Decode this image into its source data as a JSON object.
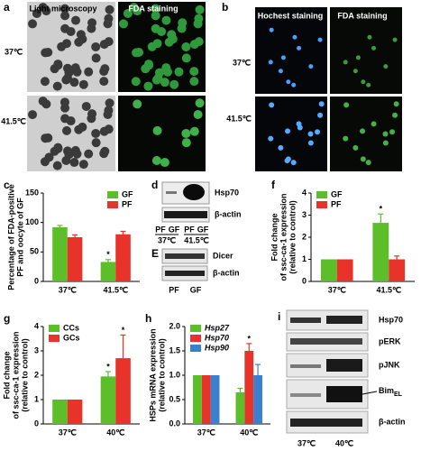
{
  "panels": {
    "a": {
      "label": "a",
      "headers": [
        "Light microscopy",
        "FDA staining"
      ],
      "rows": [
        "37℃",
        "41.5℃"
      ]
    },
    "b": {
      "label": "b",
      "headers": [
        "Hochest staining",
        "FDA staining"
      ],
      "rows": [
        "37℃",
        "41.5℃"
      ]
    },
    "d": {
      "label": "d",
      "bands": [
        "Hsp70",
        "β-actin"
      ],
      "lanes": [
        "PF",
        "GF",
        "PF",
        "GF"
      ],
      "temps": [
        "37℃",
        "41.5℃"
      ]
    },
    "e": {
      "label": "E",
      "bands": [
        "Dicer",
        "β-actin"
      ],
      "lanes": [
        "PF",
        "GF"
      ]
    },
    "i": {
      "label": "i",
      "bands": [
        "Hsp70",
        "pERK",
        "pJNK",
        "Bim",
        "β-actin"
      ],
      "subscript": "EL",
      "lanes": [
        "37℃",
        "40℃"
      ]
    }
  },
  "chart_data": [
    {
      "type": "bar",
      "panel": "c",
      "ylabel": [
        "Percentage of FDA-positive",
        "PF and oocyte of GF"
      ],
      "categories": [
        "37℃",
        "41.5℃"
      ],
      "ylim": [
        0,
        150
      ],
      "yticks": [
        0,
        50,
        100,
        150
      ],
      "legend": "top-right",
      "series": [
        {
          "name": "GF",
          "color": "#5cbf2a",
          "values": [
            92,
            33
          ],
          "errors": [
            3,
            4
          ],
          "markers": [
            null,
            "*"
          ]
        },
        {
          "name": "PF",
          "color": "#e8332a",
          "values": [
            75,
            80
          ],
          "errors": [
            4,
            5
          ],
          "markers": [
            null,
            null
          ]
        }
      ]
    },
    {
      "type": "bar",
      "panel": "f",
      "ylabel": [
        "Fold change",
        "of ssc-ca-1 expression",
        "(relative to control)"
      ],
      "categories": [
        "37℃",
        "41.5℃"
      ],
      "ylim": [
        0,
        4
      ],
      "yticks": [
        0,
        1,
        2,
        3,
        4
      ],
      "legend": "top-left",
      "series": [
        {
          "name": "GF",
          "color": "#5cbf2a",
          "values": [
            1,
            2.65
          ],
          "errors": [
            null,
            0.4
          ],
          "markers": [
            null,
            "*"
          ]
        },
        {
          "name": "PF",
          "color": "#e8332a",
          "values": [
            1,
            1
          ],
          "errors": [
            null,
            0.15
          ],
          "markers": [
            null,
            null
          ]
        }
      ]
    },
    {
      "type": "bar",
      "panel": "g",
      "ylabel": [
        "Fold change",
        "of ssc-ca-1 expression",
        "(relative to control)"
      ],
      "categories": [
        "37℃",
        "40℃"
      ],
      "ylim": [
        0,
        4
      ],
      "yticks": [
        0,
        1,
        2,
        3,
        4
      ],
      "legend": "top-left",
      "series": [
        {
          "name": "CCs",
          "color": "#5cbf2a",
          "values": [
            1,
            1.95
          ],
          "errors": [
            null,
            0.2
          ],
          "markers": [
            null,
            "*"
          ]
        },
        {
          "name": "GCs",
          "color": "#e8332a",
          "values": [
            1,
            2.7
          ],
          "errors": [
            null,
            0.95
          ],
          "markers": [
            null,
            "*"
          ]
        }
      ]
    },
    {
      "type": "bar",
      "panel": "h",
      "ylabel": [
        "HSPs mRNA expression",
        "(relative to control)"
      ],
      "categories": [
        "37℃",
        "40℃"
      ],
      "ylim": [
        0,
        2
      ],
      "yticks": [
        {
          "value": 0,
          "label": "0.0"
        },
        {
          "value": 0.5,
          "label": "0.5"
        },
        {
          "value": 1,
          "label": "1.0"
        },
        {
          "value": 1.5,
          "label": "1.5"
        },
        {
          "value": 2,
          "label": "2.0"
        }
      ],
      "legend": "top-left",
      "legend_italic": true,
      "series": [
        {
          "name": "Hsp27",
          "color": "#5cbf2a",
          "values": [
            1,
            0.65
          ],
          "errors": [
            null,
            0.08
          ],
          "markers": [
            null,
            null
          ]
        },
        {
          "name": "Hsp70",
          "color": "#e8332a",
          "values": [
            1,
            1.5
          ],
          "errors": [
            null,
            0.15
          ],
          "markers": [
            null,
            "*"
          ]
        },
        {
          "name": "Hsp90",
          "color": "#3a7fd0",
          "values": [
            1,
            1.0
          ],
          "errors": [
            null,
            0.22
          ],
          "markers": [
            null,
            null
          ]
        }
      ]
    }
  ]
}
